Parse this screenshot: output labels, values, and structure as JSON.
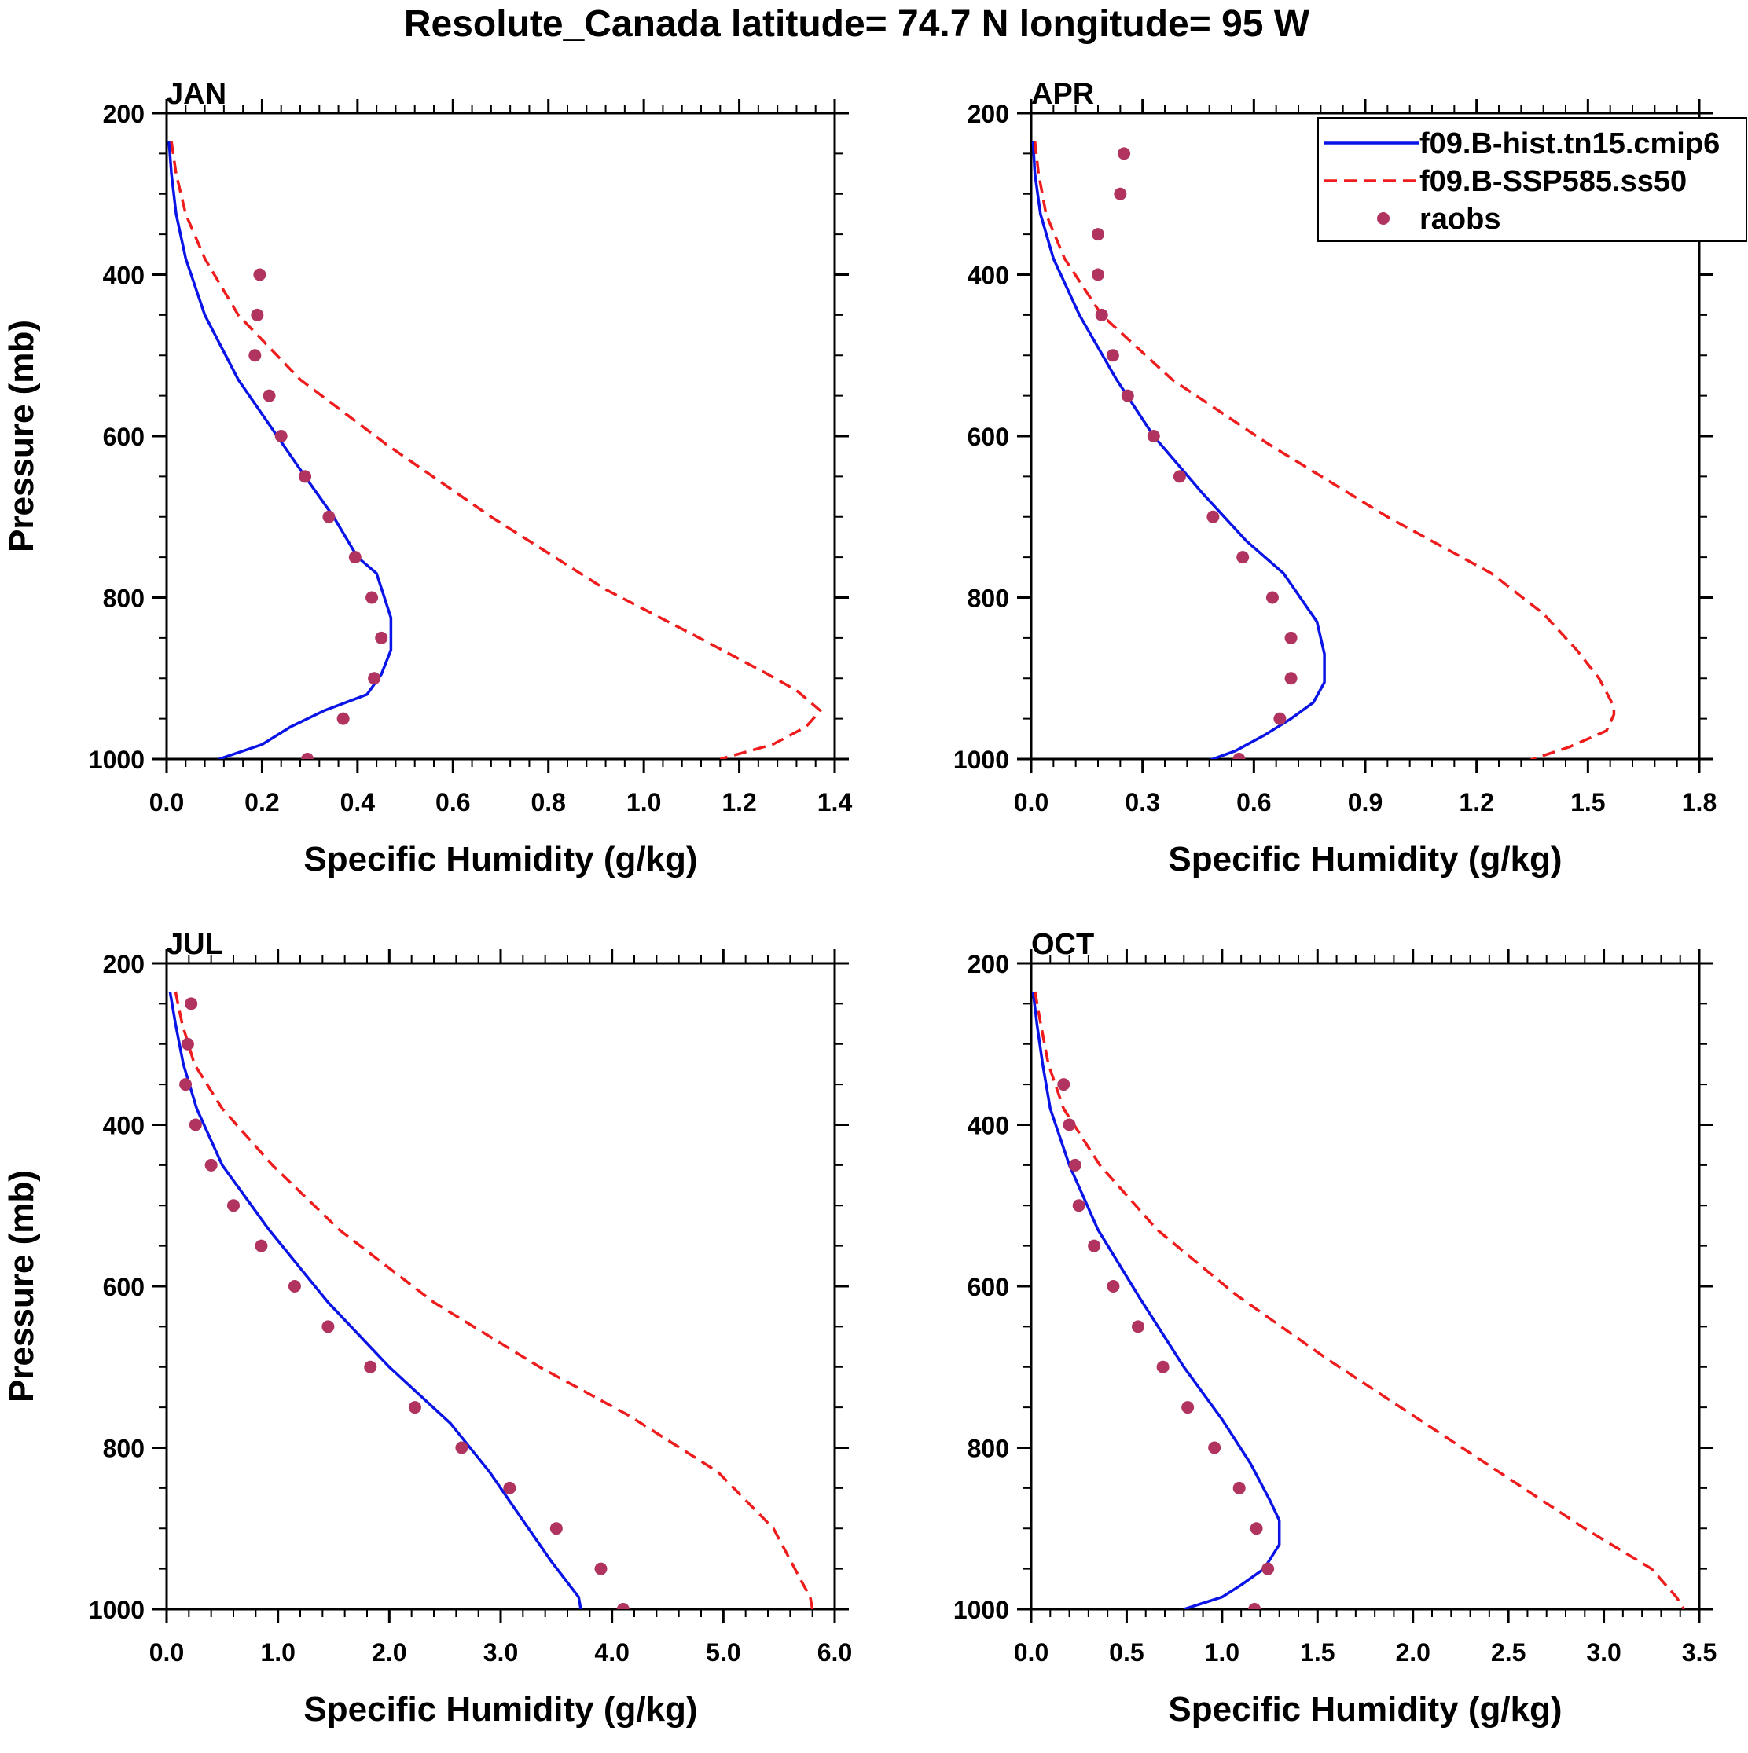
{
  "colors": {
    "hist": "#0a14e6",
    "ssp": "#ee1c1c",
    "raobs": "#b0345f",
    "axis": "#000000"
  },
  "chart_data": {
    "title": "Resolute_Canada  latitude= 74.7 N longitude= 95 W",
    "legend": {
      "entries": [
        {
          "key": "hist",
          "label": "f09.B-hist.tn15.cmip6",
          "style": "solid-line"
        },
        {
          "key": "ssp",
          "label": "f09.B-SSP585.ss50",
          "style": "dashed-line"
        },
        {
          "key": "raobs",
          "label": "raobs",
          "style": "marker"
        }
      ],
      "placement": "top-right of APR panel"
    },
    "panels": [
      {
        "name": "JAN",
        "type": "line",
        "xlabel": "Specific Humidity (g/kg)",
        "ylabel": "Pressure (mb)",
        "xlim": [
          0,
          1.4
        ],
        "ylim": [
          200,
          1000
        ],
        "y_inverted": true,
        "xticks": [
          0,
          0.2,
          0.4,
          0.6,
          0.8,
          1.0,
          1.2,
          1.4
        ],
        "xtick_labels": [
          "0.0",
          "0.2",
          "0.4",
          "0.6",
          "0.8",
          "1.0",
          "1.2",
          "1.4"
        ],
        "yticks": [
          200,
          400,
          600,
          800,
          1000
        ],
        "ytick_labels": [
          "200",
          "400",
          "600",
          "800",
          "1000"
        ],
        "series": [
          {
            "key": "hist",
            "name": "f09.B-hist.tn15.cmip6",
            "points": [
              [
                0.005,
                235
              ],
              [
                0.01,
                275
              ],
              [
                0.02,
                325
              ],
              [
                0.04,
                380
              ],
              [
                0.08,
                450
              ],
              [
                0.15,
                530
              ],
              [
                0.22,
                590
              ],
              [
                0.29,
                650
              ],
              [
                0.35,
                700
              ],
              [
                0.4,
                750
              ],
              [
                0.44,
                770
              ],
              [
                0.47,
                825
              ],
              [
                0.47,
                865
              ],
              [
                0.45,
                895
              ],
              [
                0.42,
                920
              ],
              [
                0.33,
                940
              ],
              [
                0.26,
                960
              ],
              [
                0.2,
                982
              ],
              [
                0.11,
                1000
              ]
            ]
          },
          {
            "key": "ssp",
            "name": "f09.B-SSP585.ss50",
            "points": [
              [
                0.01,
                235
              ],
              [
                0.02,
                275
              ],
              [
                0.04,
                325
              ],
              [
                0.08,
                380
              ],
              [
                0.15,
                450
              ],
              [
                0.28,
                530
              ],
              [
                0.46,
                610
              ],
              [
                0.68,
                700
              ],
              [
                0.92,
                790
              ],
              [
                1.1,
                845
              ],
              [
                1.26,
                895
              ],
              [
                1.32,
                915
              ],
              [
                1.37,
                940
              ],
              [
                1.34,
                960
              ],
              [
                1.27,
                982
              ],
              [
                1.16,
                1000
              ]
            ]
          },
          {
            "key": "raobs",
            "name": "raobs",
            "points": [
              [
                0.195,
                400
              ],
              [
                0.19,
                450
              ],
              [
                0.185,
                500
              ],
              [
                0.215,
                550
              ],
              [
                0.24,
                600
              ],
              [
                0.29,
                650
              ],
              [
                0.34,
                700
              ],
              [
                0.395,
                750
              ],
              [
                0.43,
                800
              ],
              [
                0.45,
                850
              ],
              [
                0.435,
                900
              ],
              [
                0.37,
                950
              ],
              [
                0.295,
                1000
              ]
            ]
          }
        ]
      },
      {
        "name": "APR",
        "type": "line",
        "xlabel": "Specific Humidity (g/kg)",
        "ylabel": "Pressure (mb)",
        "xlim": [
          0,
          1.8
        ],
        "ylim": [
          200,
          1000
        ],
        "y_inverted": true,
        "xticks": [
          0,
          0.3,
          0.6,
          0.9,
          1.2,
          1.5,
          1.8
        ],
        "xtick_labels": [
          "0.0",
          "0.3",
          "0.6",
          "0.9",
          "1.2",
          "1.5",
          "1.8"
        ],
        "yticks": [
          200,
          400,
          600,
          800,
          1000
        ],
        "ytick_labels": [
          "200",
          "400",
          "600",
          "800",
          "1000"
        ],
        "series": [
          {
            "key": "hist",
            "name": "f09.B-hist.tn15.cmip6",
            "points": [
              [
                0.005,
                235
              ],
              [
                0.01,
                275
              ],
              [
                0.025,
                325
              ],
              [
                0.06,
                380
              ],
              [
                0.13,
                450
              ],
              [
                0.23,
                530
              ],
              [
                0.33,
                600
              ],
              [
                0.46,
                670
              ],
              [
                0.58,
                730
              ],
              [
                0.68,
                770
              ],
              [
                0.77,
                830
              ],
              [
                0.79,
                870
              ],
              [
                0.79,
                905
              ],
              [
                0.76,
                930
              ],
              [
                0.7,
                950
              ],
              [
                0.63,
                970
              ],
              [
                0.55,
                990
              ],
              [
                0.46,
                1005
              ]
            ]
          },
          {
            "key": "ssp",
            "name": "f09.B-SSP585.ss50",
            "points": [
              [
                0.01,
                235
              ],
              [
                0.02,
                275
              ],
              [
                0.04,
                325
              ],
              [
                0.09,
                380
              ],
              [
                0.19,
                450
              ],
              [
                0.38,
                530
              ],
              [
                0.64,
                610
              ],
              [
                0.96,
                700
              ],
              [
                1.24,
                770
              ],
              [
                1.38,
                820
              ],
              [
                1.47,
                865
              ],
              [
                1.53,
                900
              ],
              [
                1.57,
                935
              ],
              [
                1.57,
                945
              ],
              [
                1.55,
                965
              ],
              [
                1.45,
                985
              ],
              [
                1.32,
                1005
              ]
            ]
          },
          {
            "key": "raobs",
            "name": "raobs",
            "points": [
              [
                0.25,
                250
              ],
              [
                0.24,
                300
              ],
              [
                0.18,
                350
              ],
              [
                0.18,
                400
              ],
              [
                0.19,
                450
              ],
              [
                0.22,
                500
              ],
              [
                0.26,
                550
              ],
              [
                0.33,
                600
              ],
              [
                0.4,
                650
              ],
              [
                0.49,
                700
              ],
              [
                0.57,
                750
              ],
              [
                0.65,
                800
              ],
              [
                0.7,
                850
              ],
              [
                0.7,
                900
              ],
              [
                0.67,
                950
              ],
              [
                0.56,
                1000
              ]
            ]
          }
        ]
      },
      {
        "name": "JUL",
        "type": "line",
        "xlabel": "Specific Humidity (g/kg)",
        "ylabel": "Pressure (mb)",
        "xlim": [
          0,
          6.0
        ],
        "ylim": [
          200,
          1000
        ],
        "y_inverted": true,
        "xticks": [
          0,
          1,
          2,
          3,
          4,
          5,
          6
        ],
        "xtick_labels": [
          "0.0",
          "1.0",
          "2.0",
          "3.0",
          "4.0",
          "5.0",
          "6.0"
        ],
        "yticks": [
          200,
          400,
          600,
          800,
          1000
        ],
        "ytick_labels": [
          "200",
          "400",
          "600",
          "800",
          "1000"
        ],
        "series": [
          {
            "key": "hist",
            "name": "f09.B-hist.tn15.cmip6",
            "points": [
              [
                0.03,
                235
              ],
              [
                0.08,
                275
              ],
              [
                0.15,
                325
              ],
              [
                0.27,
                380
              ],
              [
                0.5,
                450
              ],
              [
                0.92,
                530
              ],
              [
                1.45,
                620
              ],
              [
                2.0,
                700
              ],
              [
                2.55,
                770
              ],
              [
                2.9,
                830
              ],
              [
                3.2,
                890
              ],
              [
                3.45,
                940
              ],
              [
                3.7,
                985
              ],
              [
                3.72,
                1000
              ]
            ]
          },
          {
            "key": "ssp",
            "name": "f09.B-SSP585.ss50",
            "points": [
              [
                0.08,
                235
              ],
              [
                0.14,
                275
              ],
              [
                0.25,
                325
              ],
              [
                0.5,
                380
              ],
              [
                0.95,
                450
              ],
              [
                1.55,
                530
              ],
              [
                2.4,
                620
              ],
              [
                3.35,
                700
              ],
              [
                4.15,
                760
              ],
              [
                4.95,
                830
              ],
              [
                5.45,
                900
              ],
              [
                5.7,
                965
              ],
              [
                5.78,
                985
              ],
              [
                5.8,
                1000
              ]
            ]
          },
          {
            "key": "raobs",
            "name": "raobs",
            "points": [
              [
                0.22,
                250
              ],
              [
                0.19,
                300
              ],
              [
                0.17,
                350
              ],
              [
                0.26,
                400
              ],
              [
                0.4,
                450
              ],
              [
                0.6,
                500
              ],
              [
                0.85,
                550
              ],
              [
                1.15,
                600
              ],
              [
                1.45,
                650
              ],
              [
                1.83,
                700
              ],
              [
                2.23,
                750
              ],
              [
                2.65,
                800
              ],
              [
                3.08,
                850
              ],
              [
                3.5,
                900
              ],
              [
                3.9,
                950
              ],
              [
                4.1,
                1000
              ]
            ]
          }
        ]
      },
      {
        "name": "OCT",
        "type": "line",
        "xlabel": "Specific Humidity (g/kg)",
        "ylabel": "Pressure (mb)",
        "xlim": [
          0,
          3.5
        ],
        "ylim": [
          200,
          1000
        ],
        "y_inverted": true,
        "xticks": [
          0,
          0.5,
          1.0,
          1.5,
          2.0,
          2.5,
          3.0,
          3.5
        ],
        "xtick_labels": [
          "0.0",
          "0.5",
          "1.0",
          "1.5",
          "2.0",
          "2.5",
          "3.0",
          "3.5"
        ],
        "yticks": [
          200,
          400,
          600,
          800,
          1000
        ],
        "ytick_labels": [
          "200",
          "400",
          "600",
          "800",
          "1000"
        ],
        "series": [
          {
            "key": "hist",
            "name": "f09.B-hist.tn15.cmip6",
            "points": [
              [
                0.01,
                235
              ],
              [
                0.03,
                275
              ],
              [
                0.06,
                325
              ],
              [
                0.1,
                380
              ],
              [
                0.2,
                450
              ],
              [
                0.35,
                530
              ],
              [
                0.57,
                615
              ],
              [
                0.8,
                700
              ],
              [
                1.0,
                765
              ],
              [
                1.15,
                820
              ],
              [
                1.25,
                865
              ],
              [
                1.3,
                890
              ],
              [
                1.3,
                920
              ],
              [
                1.22,
                950
              ],
              [
                1.1,
                970
              ],
              [
                1.0,
                985
              ],
              [
                0.8,
                1000
              ]
            ]
          },
          {
            "key": "ssp",
            "name": "f09.B-SSP585.ss50",
            "points": [
              [
                0.02,
                235
              ],
              [
                0.05,
                275
              ],
              [
                0.09,
                325
              ],
              [
                0.17,
                380
              ],
              [
                0.36,
                450
              ],
              [
                0.66,
                530
              ],
              [
                1.07,
                610
              ],
              [
                1.55,
                690
              ],
              [
                2.0,
                760
              ],
              [
                2.45,
                830
              ],
              [
                2.9,
                900
              ],
              [
                3.25,
                950
              ],
              [
                3.38,
                985
              ],
              [
                3.42,
                1000
              ]
            ]
          },
          {
            "key": "raobs",
            "name": "raobs",
            "points": [
              [
                0.17,
                350
              ],
              [
                0.2,
                400
              ],
              [
                0.23,
                450
              ],
              [
                0.25,
                500
              ],
              [
                0.33,
                550
              ],
              [
                0.43,
                600
              ],
              [
                0.56,
                650
              ],
              [
                0.69,
                700
              ],
              [
                0.82,
                750
              ],
              [
                0.96,
                800
              ],
              [
                1.09,
                850
              ],
              [
                1.18,
                900
              ],
              [
                1.24,
                950
              ],
              [
                1.17,
                1000
              ]
            ]
          }
        ]
      }
    ]
  }
}
